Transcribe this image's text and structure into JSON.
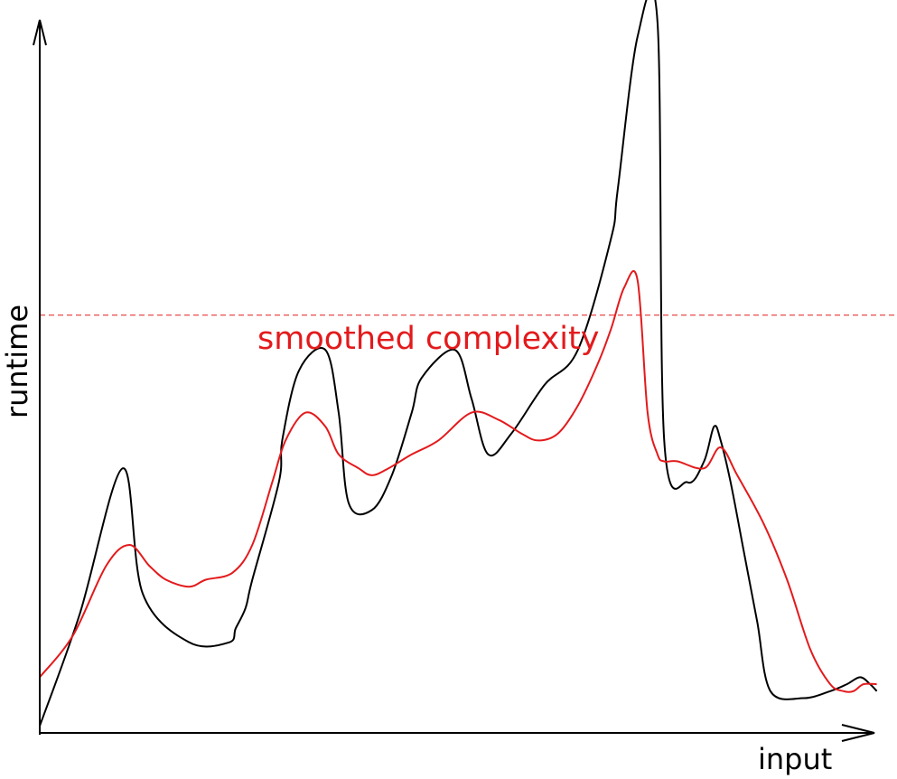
{
  "chart_data": {
    "type": "line",
    "title": "",
    "xlabel": "input",
    "ylabel": "runtime",
    "grid": false,
    "legend": "none",
    "x_ticks": [],
    "y_ticks": [],
    "series": [
      {
        "key": "runtime_curve",
        "color": "#000000",
        "x": [
          0,
          0.12,
          0.25,
          0.31,
          0.45,
          0.57,
          0.59,
          0.62,
          0.64,
          0.72,
          0.73,
          0.78,
          0.86,
          0.9,
          0.93,
          1.0,
          1.06,
          1.12,
          1.15,
          1.25,
          1.3,
          1.35,
          1.42,
          1.52,
          1.62,
          1.72,
          1.74,
          1.8,
          1.86,
          1.88,
          1.95,
          2.0,
          2.03,
          2.05,
          2.08,
          2.12,
          2.16,
          2.2,
          2.3,
          2.38,
          2.43,
          2.47,
          2.5,
          2.52
        ],
        "y": [
          0.01,
          0.17,
          0.38,
          0.2,
          0.13,
          0.13,
          0.15,
          0.18,
          0.22,
          0.36,
          0.42,
          0.52,
          0.55,
          0.46,
          0.33,
          0.32,
          0.37,
          0.46,
          0.51,
          0.55,
          0.48,
          0.4,
          0.43,
          0.5,
          0.55,
          0.71,
          0.78,
          1.0,
          1.02,
          0.42,
          0.36,
          0.39,
          0.44,
          0.42,
          0.36,
          0.26,
          0.16,
          0.06,
          0.05,
          0.06,
          0.07,
          0.08,
          0.07,
          0.06
        ]
      },
      {
        "key": "smoothed_curve",
        "color": "#e31a1c",
        "x": [
          0,
          0.1,
          0.2,
          0.27,
          0.33,
          0.38,
          0.45,
          0.5,
          0.58,
          0.64,
          0.7,
          0.74,
          0.8,
          0.86,
          0.9,
          0.96,
          1.0,
          1.05,
          1.12,
          1.2,
          1.3,
          1.38,
          1.45,
          1.5,
          1.56,
          1.62,
          1.68,
          1.72,
          1.76,
          1.8,
          1.83,
          1.86,
          1.88,
          1.92,
          2.0,
          2.05,
          2.1,
          2.18,
          2.25,
          2.32,
          2.38,
          2.42,
          2.45,
          2.48,
          2.52
        ],
        "y": [
          0.08,
          0.14,
          0.24,
          0.27,
          0.24,
          0.22,
          0.21,
          0.22,
          0.23,
          0.27,
          0.36,
          0.42,
          0.46,
          0.44,
          0.4,
          0.38,
          0.37,
          0.38,
          0.4,
          0.42,
          0.46,
          0.45,
          0.43,
          0.42,
          0.43,
          0.47,
          0.53,
          0.58,
          0.64,
          0.65,
          0.46,
          0.4,
          0.39,
          0.39,
          0.38,
          0.41,
          0.37,
          0.3,
          0.22,
          0.12,
          0.07,
          0.06,
          0.06,
          0.07,
          0.07
        ]
      }
    ],
    "annotation": {
      "label": "smoothed complexity",
      "threshold_y": 0.6,
      "color": "#e31a1c"
    },
    "xlim": [
      0,
      2.6
    ],
    "ylim": [
      0,
      1.05
    ]
  }
}
